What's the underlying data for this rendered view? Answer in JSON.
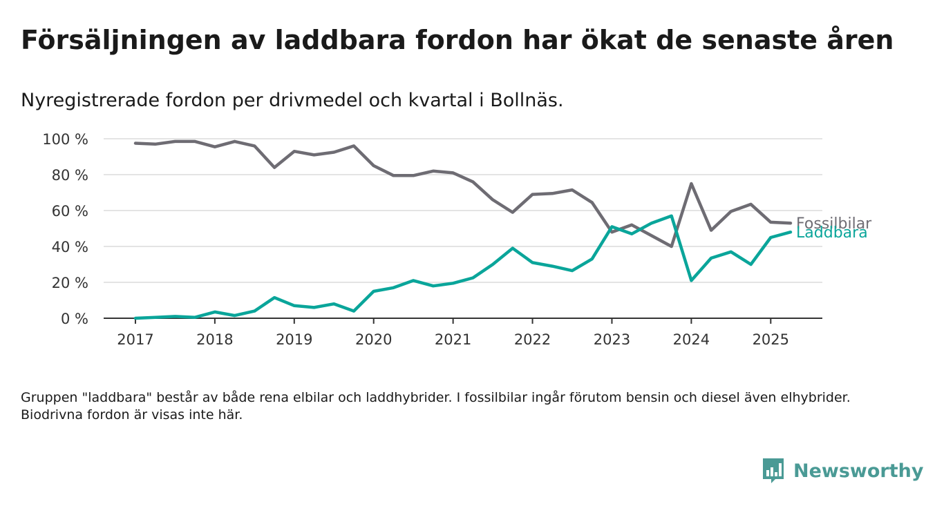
{
  "title": "Försäljningen av laddbara fordon har ökat de senaste åren",
  "subtitle": "Nyregistrerade fordon per drivmedel och kvartal i Bollnäs.",
  "footnote": "Gruppen \"laddbara\" består av både rena elbilar och laddhybrider. I fossilbilar ingår förutom bensin och diesel även elhybrider. Biodrivna fordon är visas inte här.",
  "logo": {
    "text": "Newsworthy",
    "color": "#4a9a95"
  },
  "chart_data": {
    "type": "line",
    "title": "Försäljningen av laddbara fordon har ökat de senaste åren",
    "subtitle": "Nyregistrerade fordon per drivmedel och kvartal i Bollnäs.",
    "xlabel": "",
    "ylabel": "",
    "x_ticks": [
      "2017",
      "2018",
      "2019",
      "2020",
      "2021",
      "2022",
      "2023",
      "2024",
      "2025"
    ],
    "x_start": 2017,
    "x_end": 2025.25,
    "x_range": [
      2016.6,
      2025.65
    ],
    "y_ticks": [
      "0 %",
      "20 %",
      "40 %",
      "60 %",
      "80 %",
      "100 %"
    ],
    "ylim": [
      0,
      100
    ],
    "grid": true,
    "legend": "direct labels at line ends",
    "series": [
      {
        "name": "Fossilbilar",
        "color": "#6e6c73",
        "values": [
          97.5,
          97,
          98.5,
          98.5,
          95.5,
          98.5,
          96,
          84,
          93,
          91,
          92.5,
          96,
          85,
          79.5,
          79.5,
          82,
          81,
          76,
          66,
          59,
          69,
          69.5,
          71.5,
          64.5,
          48,
          52,
          46,
          40,
          75,
          49,
          59.5,
          63.5,
          53.5,
          53
        ]
      },
      {
        "name": "Laddbara",
        "color": "#0aa59a",
        "values": [
          0,
          0.5,
          1,
          0.5,
          3.5,
          1.5,
          4,
          11.5,
          7,
          6,
          8,
          4,
          15,
          17,
          21,
          18,
          19.5,
          22.5,
          30,
          39,
          31,
          29,
          26.5,
          33,
          51,
          47,
          53,
          57,
          21,
          33.5,
          37,
          30,
          45,
          48
        ]
      }
    ]
  }
}
